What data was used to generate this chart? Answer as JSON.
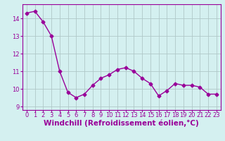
{
  "x": [
    0,
    1,
    2,
    3,
    4,
    5,
    6,
    7,
    8,
    9,
    10,
    11,
    12,
    13,
    14,
    15,
    16,
    17,
    18,
    19,
    20,
    21,
    22,
    23
  ],
  "y": [
    14.3,
    14.4,
    13.8,
    13.0,
    11.0,
    9.8,
    9.5,
    9.7,
    10.2,
    10.6,
    10.8,
    11.1,
    11.2,
    11.0,
    10.6,
    10.3,
    9.6,
    9.9,
    10.3,
    10.2,
    10.2,
    10.1,
    9.7,
    9.7
  ],
  "line_color": "#990099",
  "marker": "D",
  "marker_size": 2.5,
  "bg_color": "#d4f0f0",
  "grid_color": "#b0c8c8",
  "xlabel": "Windchill (Refroidissement éolien,°C)",
  "ylabel": "",
  "ylim": [
    8.8,
    14.8
  ],
  "xlim": [
    -0.5,
    23.5
  ],
  "yticks": [
    9,
    10,
    11,
    12,
    13,
    14
  ],
  "xticks": [
    0,
    1,
    2,
    3,
    4,
    5,
    6,
    7,
    8,
    9,
    10,
    11,
    12,
    13,
    14,
    15,
    16,
    17,
    18,
    19,
    20,
    21,
    22,
    23
  ],
  "tick_color": "#990099",
  "label_color": "#990099",
  "font_size": 6,
  "xlabel_font_size": 7.5,
  "spine_color": "#990099"
}
